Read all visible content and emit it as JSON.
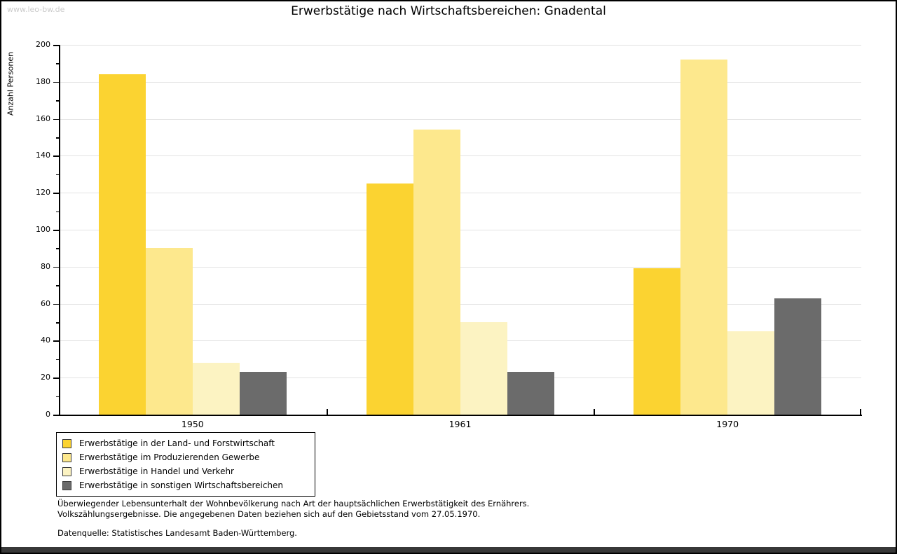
{
  "watermark": "www.leo-bw.de",
  "title": "Erwerbstätige nach Wirtschaftsbereichen: Gnadental",
  "chart_data": {
    "type": "bar",
    "title": "Erwerbstätige nach Wirtschaftsbereichen: Gnadental",
    "xlabel": "",
    "ylabel": "Anzahl Personen",
    "ylim": [
      0,
      200
    ],
    "y_major_step": 20,
    "y_minor_step": 10,
    "grid": true,
    "legend_position": "bottom-left",
    "categories": [
      "1950",
      "1961",
      "1970"
    ],
    "series": [
      {
        "name": "Erwerbstätige in der Land- und Forstwirtschaft",
        "color": "#fbd331",
        "values": [
          184,
          125,
          79
        ]
      },
      {
        "name": "Erwerbstätige im Produzierenden Gewerbe",
        "color": "#fde88d",
        "values": [
          90,
          154,
          192
        ]
      },
      {
        "name": "Erwerbstätige in Handel und Verkehr",
        "color": "#fcf3c2",
        "values": [
          28,
          50,
          45
        ]
      },
      {
        "name": "Erwerbstätige in sonstigen Wirtschaftsbereichen",
        "color": "#6b6b6b",
        "values": [
          23,
          23,
          63
        ]
      }
    ]
  },
  "footer": {
    "line1": "Überwiegender Lebensunterhalt der Wohnbevölkerung nach Art der hauptsächlichen Erwerbstätigkeit des Ernährers.",
    "line2": "Volkszählungsergebnisse. Die angegebenen Daten beziehen sich auf den Gebietsstand vom 27.05.1970.",
    "source": "Datenquelle: Statistisches Landesamt Baden-Württemberg."
  },
  "colors": {
    "grid": "#e2e2e2",
    "axis": "#000000",
    "watermark": "#cbcbcb",
    "bottom_bar": "#383838"
  }
}
